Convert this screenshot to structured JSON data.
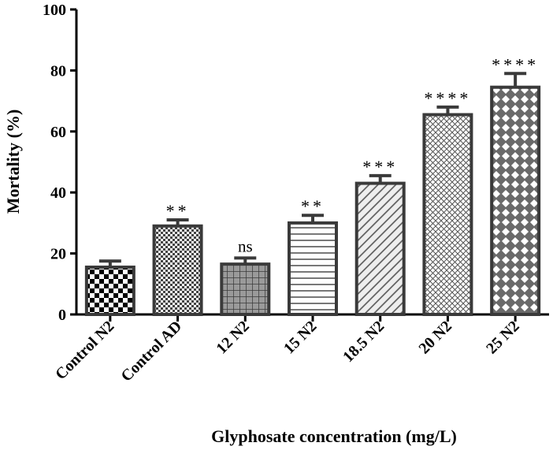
{
  "chart_data": {
    "type": "bar",
    "ylabel": "Mortality (%)",
    "xlabel": "Glyphosate concentration (mg/L)",
    "ylim": [
      0,
      100
    ],
    "yticks": [
      0,
      20,
      40,
      60,
      80,
      100
    ],
    "grid": false,
    "categories": [
      "Control N2",
      "Control AD",
      "12 N2",
      "15 N2",
      "18.5 N2",
      "20 N2",
      "25 N2"
    ],
    "values": [
      15.5,
      29,
      16.5,
      30,
      43,
      65.5,
      74.5
    ],
    "errors": [
      2,
      2,
      2,
      2.5,
      2.5,
      2.5,
      4.5
    ],
    "significance": [
      "",
      "**",
      "ns",
      "**",
      "***",
      "****",
      "****"
    ],
    "patterns": [
      "checker",
      "fine-checker",
      "grid",
      "horizontal-lines",
      "diagonal-lines",
      "crosshatch",
      "diamond"
    ]
  }
}
